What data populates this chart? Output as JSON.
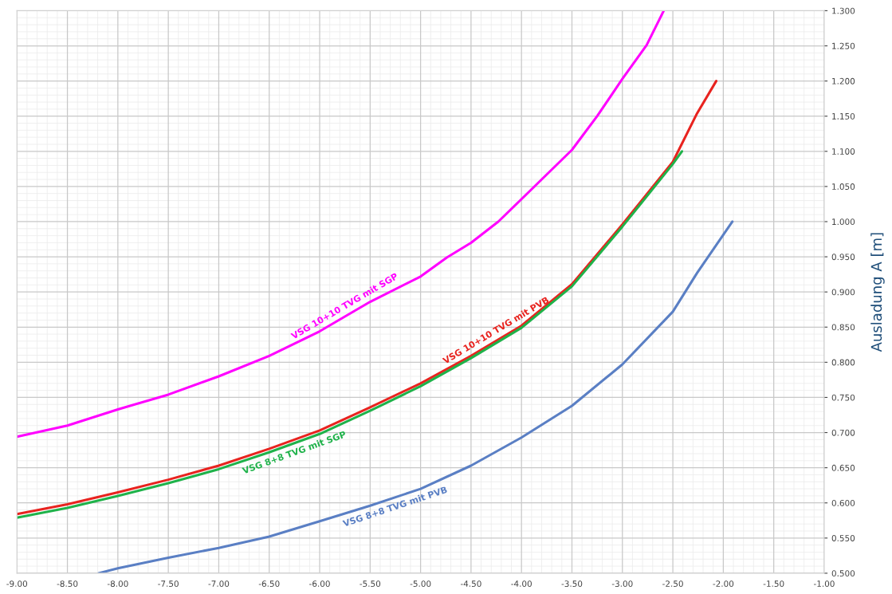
{
  "chart_data": {
    "type": "line",
    "ylabel": "Ausladung A [m]",
    "xlim": [
      -9.0,
      -1.0
    ],
    "ylim": [
      0.5,
      1.3
    ],
    "xticks": [
      {
        "value": -9.0,
        "label": "-9.00"
      },
      {
        "value": -8.5,
        "label": "-8.50"
      },
      {
        "value": -8.0,
        "label": "-8.00"
      },
      {
        "value": -7.5,
        "label": "-7.50"
      },
      {
        "value": -7.0,
        "label": "-7.00"
      },
      {
        "value": -6.5,
        "label": "-6.50"
      },
      {
        "value": -6.0,
        "label": "-6.00"
      },
      {
        "value": -5.5,
        "label": "-5.50"
      },
      {
        "value": -5.0,
        "label": "-5.00"
      },
      {
        "value": -4.5,
        "label": "-4.50"
      },
      {
        "value": -4.0,
        "label": "-4.00"
      },
      {
        "value": -3.5,
        "label": "-3.50"
      },
      {
        "value": -3.0,
        "label": "-3.00"
      },
      {
        "value": -2.5,
        "label": "-2.50"
      },
      {
        "value": -2.0,
        "label": "-2.00"
      },
      {
        "value": -1.5,
        "label": "-1.50"
      },
      {
        "value": -1.0,
        "label": "-1.00"
      }
    ],
    "yticks": [
      {
        "value": 0.5,
        "label": "0.500"
      },
      {
        "value": 0.55,
        "label": "0.550"
      },
      {
        "value": 0.6,
        "label": "0.600"
      },
      {
        "value": 0.65,
        "label": "0.650"
      },
      {
        "value": 0.7,
        "label": "0.700"
      },
      {
        "value": 0.75,
        "label": "0.750"
      },
      {
        "value": 0.8,
        "label": "0.800"
      },
      {
        "value": 0.85,
        "label": "0.850"
      },
      {
        "value": 0.9,
        "label": "0.900"
      },
      {
        "value": 0.95,
        "label": "0.950"
      },
      {
        "value": 1.0,
        "label": "1.000"
      },
      {
        "value": 1.05,
        "label": "1.050"
      },
      {
        "value": 1.1,
        "label": "1.100"
      },
      {
        "value": 1.15,
        "label": "1.150"
      },
      {
        "value": 1.2,
        "label": "1.200"
      },
      {
        "value": 1.25,
        "label": "1.250"
      },
      {
        "value": 1.3,
        "label": "1.300"
      }
    ],
    "grid": true,
    "legend": false,
    "marker": "none",
    "line_style": "solid",
    "series": [
      {
        "name": "VSG 10+10 TVG mit SGP",
        "color": "#ff00ff",
        "x": [
          -9.0,
          -8.5,
          -8.0,
          -7.5,
          -7.0,
          -6.5,
          -6.0,
          -5.5,
          -5.0,
          -4.74,
          -4.5,
          -4.23,
          -4.0,
          -3.5,
          -3.25,
          -3.0,
          -2.76,
          -2.59
        ],
        "values": [
          0.694,
          0.71,
          0.733,
          0.754,
          0.78,
          0.809,
          0.844,
          0.886,
          0.922,
          0.949,
          0.97,
          1.0,
          1.032,
          1.102,
          1.15,
          1.203,
          1.251,
          1.3
        ]
      },
      {
        "name": "VSG 10+10 TVG mit PVB",
        "color": "#e8231f",
        "x": [
          -9.0,
          -8.5,
          -8.0,
          -7.5,
          -7.0,
          -6.5,
          -6.0,
          -5.5,
          -5.0,
          -4.5,
          -4.0,
          -3.5,
          -3.0,
          -2.5,
          -2.26,
          -2.07
        ],
        "values": [
          0.584,
          0.598,
          0.615,
          0.633,
          0.653,
          0.677,
          0.703,
          0.736,
          0.77,
          0.809,
          0.852,
          0.911,
          0.996,
          1.085,
          1.154,
          1.2
        ]
      },
      {
        "name": "VSG 8+8 TVG mit SGP",
        "color": "#1fb24a",
        "x": [
          -9.0,
          -8.5,
          -8.0,
          -7.5,
          -7.0,
          -6.5,
          -6.0,
          -5.5,
          -5.0,
          -4.5,
          -4.0,
          -3.5,
          -3.0,
          -2.5,
          -2.41
        ],
        "values": [
          0.579,
          0.593,
          0.61,
          0.628,
          0.648,
          0.672,
          0.698,
          0.731,
          0.766,
          0.806,
          0.849,
          0.908,
          0.993,
          1.082,
          1.1
        ]
      },
      {
        "name": "VSG 8+8 TVG mit PVB",
        "color": "#5a7fc4",
        "x": [
          -8.19,
          -8.0,
          -7.5,
          -7.0,
          -6.5,
          -6.0,
          -5.5,
          -5.0,
          -4.5,
          -4.0,
          -3.5,
          -3.0,
          -2.5,
          -2.26,
          -1.91
        ],
        "values": [
          0.5,
          0.507,
          0.522,
          0.536,
          0.552,
          0.574,
          0.596,
          0.62,
          0.653,
          0.693,
          0.738,
          0.797,
          0.872,
          0.927,
          1.0
        ]
      }
    ]
  }
}
